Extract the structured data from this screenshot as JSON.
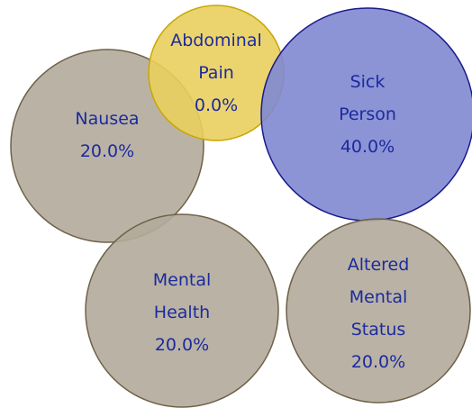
{
  "chart_data": {
    "type": "bubble",
    "categories": [
      "Nausea",
      "Abdominal Pain",
      "Sick Person",
      "Mental Health",
      "Altered Mental Status"
    ],
    "values": [
      20,
      0,
      40,
      20,
      20
    ],
    "value_labels": [
      "20.0%",
      "0.0%",
      "40.0%",
      "20.0%",
      "20.0%"
    ],
    "colors": [
      "#b3ab9b",
      "#e9cf5e",
      "#8088d2",
      "#b3ab9b",
      "#b3ab9b"
    ]
  }
}
